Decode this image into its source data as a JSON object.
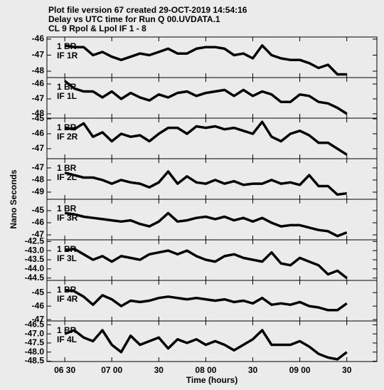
{
  "header": {
    "lines": [
      "Plot file version 67  created 29-OCT-2019 14:54:16",
      "Delay vs UTC time for Run Q 00.UVDATA.1",
      "CL 9  Rpol & Lpol  IF 1 - 8"
    ]
  },
  "y_label": "Nano Seconds",
  "x_axis": {
    "label": "Time (hours)",
    "xlim": [
      6.31,
      9.82
    ],
    "xticks": [
      {
        "value": 6.5,
        "label": "06 30"
      },
      {
        "value": 7.0,
        "label": "07 00"
      },
      {
        "value": 7.5,
        "label": "30"
      },
      {
        "value": 8.0,
        "label": "08 00"
      },
      {
        "value": 8.5,
        "label": "30"
      },
      {
        "value": 9.0,
        "label": "09 00"
      },
      {
        "value": 9.5,
        "label": "30"
      }
    ],
    "x": [
      6.5,
      6.6,
      6.7,
      6.8,
      6.9,
      7.0,
      7.1,
      7.2,
      7.3,
      7.4,
      7.5,
      7.6,
      7.7,
      7.8,
      7.9,
      8.0,
      8.1,
      8.2,
      8.3,
      8.4,
      8.5,
      8.6,
      8.7,
      8.8,
      8.9,
      9.0,
      9.1,
      9.2,
      9.3,
      9.4,
      9.5
    ]
  },
  "chart_data": [
    {
      "type": "line",
      "station": "1 BR",
      "label": "IF 1R",
      "color": "#000000",
      "ylim": [
        -48.4,
        -45.87
      ],
      "yticks": [
        -46,
        -47,
        -48
      ],
      "values": [
        -46.4,
        -46.5,
        -46.5,
        -47.0,
        -46.8,
        -47.1,
        -47.3,
        -47.1,
        -46.9,
        -47.0,
        -46.8,
        -46.6,
        -46.9,
        -46.9,
        -46.6,
        -46.5,
        -46.5,
        -46.6,
        -47.0,
        -46.9,
        -47.2,
        -46.4,
        -47.0,
        -47.2,
        -47.3,
        -47.3,
        -47.5,
        -47.8,
        -47.6,
        -48.2,
        -48.2
      ]
    },
    {
      "type": "line",
      "station": "1 BR",
      "label": "IF 1L",
      "color": "#000000",
      "ylim": [
        -48.29,
        -45.57
      ],
      "yticks": [
        -46,
        -47,
        -48
      ],
      "values": [
        -45.8,
        -46.3,
        -46.5,
        -46.5,
        -46.9,
        -46.5,
        -47.0,
        -46.6,
        -46.9,
        -47.1,
        -46.7,
        -46.9,
        -46.6,
        -46.5,
        -46.8,
        -46.6,
        -46.5,
        -46.4,
        -46.8,
        -46.4,
        -46.8,
        -46.5,
        -46.7,
        -47.2,
        -47.2,
        -46.7,
        -46.8,
        -47.2,
        -47.3,
        -47.6,
        -48.0
      ]
    },
    {
      "type": "line",
      "station": "1 BR",
      "label": "IF 2R",
      "color": "#000000",
      "ylim": [
        -47.67,
        -44.95
      ],
      "yticks": [
        -45,
        -46,
        -47
      ],
      "values": [
        -45.6,
        -45.7,
        -45.3,
        -46.2,
        -45.9,
        -46.5,
        -46.0,
        -46.2,
        -46.1,
        -46.5,
        -46.0,
        -45.6,
        -45.6,
        -46.0,
        -45.5,
        -45.6,
        -45.5,
        -45.7,
        -45.6,
        -45.8,
        -46.0,
        -45.2,
        -46.2,
        -46.5,
        -46.0,
        -45.8,
        -46.1,
        -46.6,
        -46.6,
        -47.0,
        -47.4
      ]
    },
    {
      "type": "line",
      "station": "1 BR",
      "label": "IF 2L",
      "color": "#000000",
      "ylim": [
        -49.59,
        -46.24
      ],
      "yticks": [
        -47,
        -48,
        -49
      ],
      "values": [
        -47.4,
        -47.6,
        -47.8,
        -47.8,
        -48.0,
        -48.3,
        -48.0,
        -48.2,
        -48.3,
        -48.6,
        -48.2,
        -47.3,
        -48.3,
        -47.7,
        -48.2,
        -48.3,
        -48.0,
        -48.3,
        -48.1,
        -48.4,
        -48.3,
        -48.3,
        -48.0,
        -48.3,
        -48.2,
        -48.4,
        -47.6,
        -48.5,
        -48.5,
        -49.2,
        -49.1
      ]
    },
    {
      "type": "line",
      "station": "1 BR",
      "label": "IF 3R",
      "color": "#000000",
      "ylim": [
        -47.41,
        -44.06
      ],
      "yticks": [
        -45,
        -46,
        -47
      ],
      "values": [
        -45.2,
        -45.3,
        -45.5,
        -45.6,
        -45.7,
        -45.8,
        -45.9,
        -45.8,
        -46.1,
        -46.3,
        -45.9,
        -45.2,
        -45.9,
        -45.8,
        -45.6,
        -45.5,
        -45.7,
        -45.5,
        -45.8,
        -45.6,
        -45.9,
        -45.6,
        -46.0,
        -46.3,
        -46.2,
        -46.2,
        -46.4,
        -46.6,
        -46.7,
        -47.1,
        -46.8
      ]
    },
    {
      "type": "line",
      "station": "1 BR",
      "label": "IF 3L",
      "color": "#000000",
      "ylim": [
        -44.63,
        -42.41
      ],
      "yticks": [
        -42.5,
        {
          "value": -43,
          "label": "-43.0"
        },
        -43.5,
        {
          "value": -44,
          "label": "-44.0"
        },
        -44.5
      ],
      "values": [
        -43.0,
        -42.9,
        -43.2,
        -43.5,
        -43.3,
        -43.6,
        -43.3,
        -43.4,
        -43.5,
        -43.2,
        -43.1,
        -43.0,
        -43.2,
        -43.0,
        -43.3,
        -43.5,
        -43.6,
        -43.3,
        -43.2,
        -43.4,
        -43.5,
        -43.6,
        -43.1,
        -43.7,
        -43.8,
        -43.4,
        -43.6,
        -43.8,
        -44.3,
        -44.1,
        -44.5
      ]
    },
    {
      "type": "line",
      "station": "1 BR",
      "label": "IF 4R",
      "color": "#000000",
      "ylim": [
        -47.1,
        -44.1
      ],
      "yticks": [
        -45,
        -46,
        -47
      ],
      "values": [
        -44.8,
        -44.9,
        -45.3,
        -45.9,
        -45.2,
        -45.5,
        -46.0,
        -45.6,
        -45.7,
        -45.6,
        -45.4,
        -45.3,
        -45.4,
        -45.5,
        -45.4,
        -45.5,
        -45.6,
        -45.5,
        -45.7,
        -45.6,
        -45.8,
        -45.4,
        -45.9,
        -45.8,
        -45.9,
        -45.7,
        -46.0,
        -46.1,
        -46.3,
        -46.3,
        -45.8
      ]
    },
    {
      "type": "line",
      "station": "1 BR",
      "label": "IF 4L",
      "color": "#000000",
      "ylim": [
        -48.52,
        -46.29
      ],
      "yticks": [
        -46.5,
        {
          "value": -47,
          "label": "-47.0"
        },
        -47.5,
        {
          "value": -48,
          "label": "-48.0"
        },
        -48.5
      ],
      "values": [
        -47.0,
        -46.8,
        -47.2,
        -47.4,
        -46.8,
        -47.6,
        -48.0,
        -47.1,
        -47.6,
        -47.4,
        -47.2,
        -47.8,
        -47.3,
        -47.5,
        -47.3,
        -47.6,
        -47.4,
        -47.6,
        -47.9,
        -47.6,
        -47.3,
        -46.8,
        -47.6,
        -47.6,
        -47.6,
        -47.4,
        -47.7,
        -48.1,
        -48.3,
        -48.4,
        -48.0
      ]
    }
  ]
}
